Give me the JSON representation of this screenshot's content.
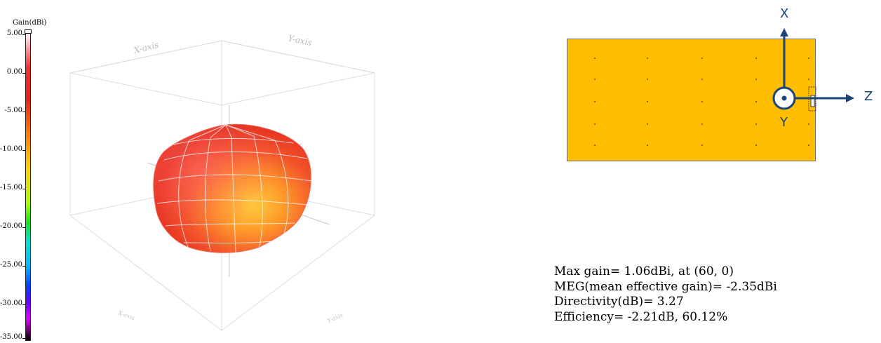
{
  "colorbar": {
    "title": "Gain(dBi)",
    "ticks": [
      "5.00",
      "0.00",
      "-5.00",
      "-10.00",
      "-15.00",
      "-20.00",
      "-25.00",
      "-30.00",
      "-35.00"
    ]
  },
  "plot3d": {
    "axis_labels": {
      "x_top": "X-axis",
      "y_top": "Y-axis",
      "x_bottom": "X-axis",
      "y_bottom": "Y-axis"
    },
    "surface_color": "#e8341c",
    "highlight_color": "#ffb52e"
  },
  "orientation": {
    "board_color": "#ffbf00",
    "arrow_color": "#1c4575",
    "labels": {
      "x": "X",
      "y": "Y",
      "z": "Z"
    }
  },
  "stats": {
    "max_gain": "Max gain= 1.06dBi, at (60, 0)",
    "meg": "MEG(mean effective gain)= -2.35dBi",
    "directivity": "Directivity(dB)= 3.27",
    "efficiency": "Efficiency= -2.21dB, 60.12%"
  }
}
